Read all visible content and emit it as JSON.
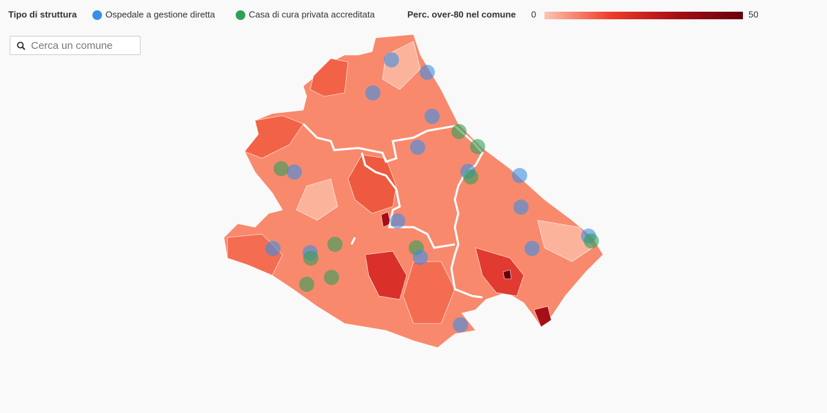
{
  "legend": {
    "title": "Tipo di struttura",
    "items": [
      {
        "label": "Ospedale a gestione diretta",
        "color": "#3a8ee6"
      },
      {
        "label": "Casa di cura privata accreditata",
        "color": "#2ea05a"
      }
    ]
  },
  "color_scale": {
    "title": "Perc. over-80 nel comune",
    "min": 0,
    "max": 50,
    "colors": [
      "#fcc5b0",
      "#ef3b2c",
      "#a50f15",
      "#67000d"
    ]
  },
  "search": {
    "placeholder": "Cerca un comune"
  }
}
